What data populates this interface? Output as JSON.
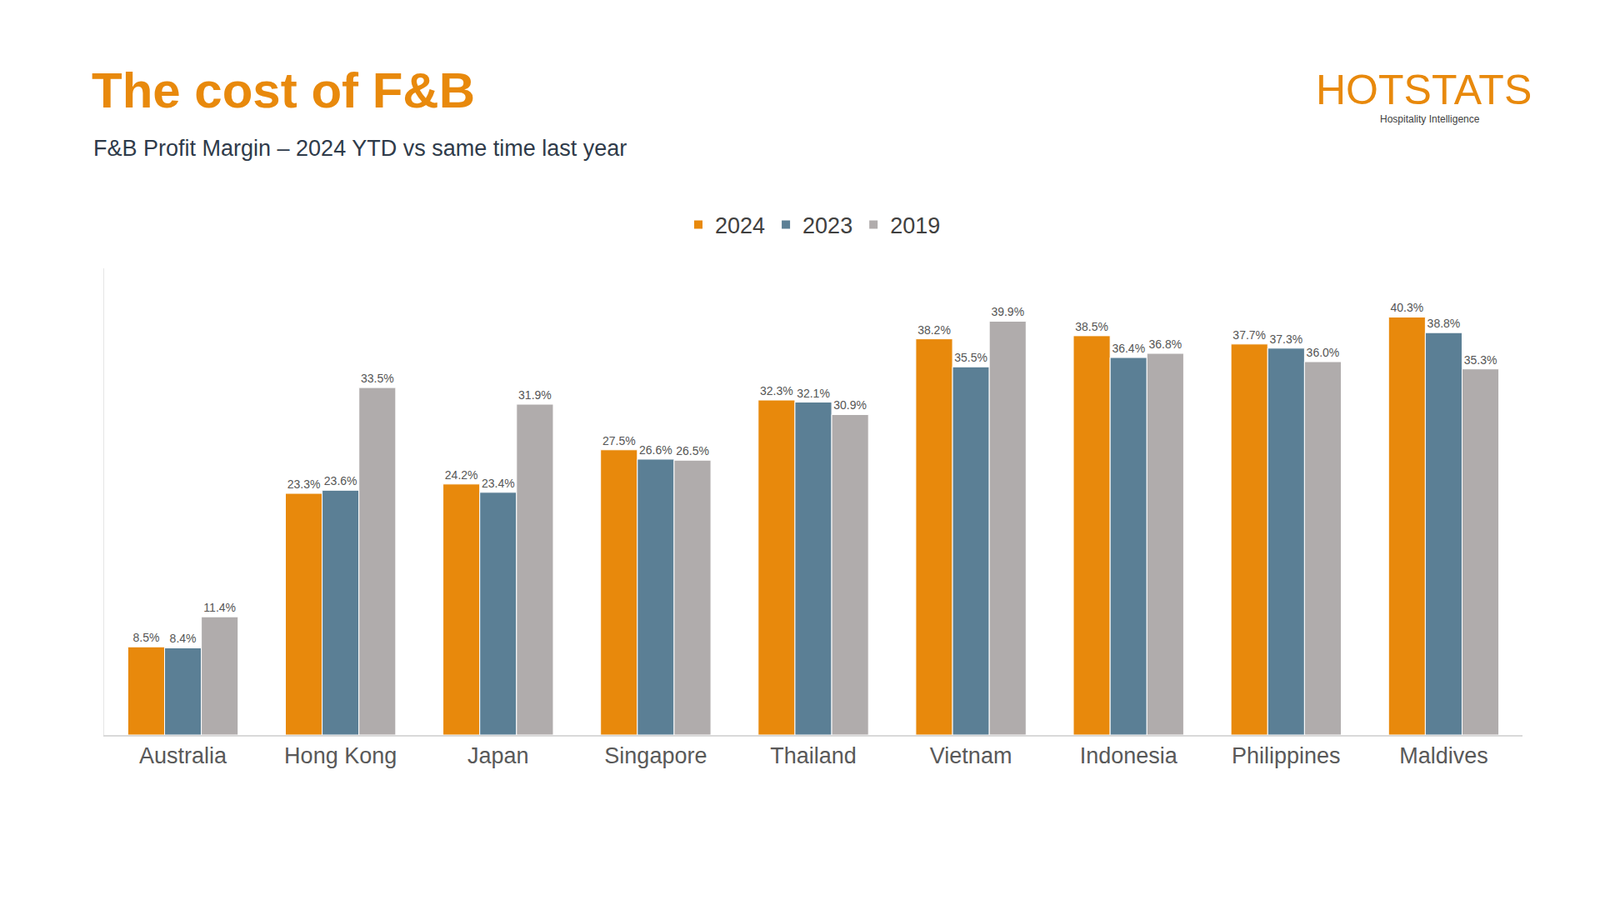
{
  "chart_data": {
    "type": "bar",
    "title": "The cost of F&B",
    "subtitle": "F&B Profit Margin – 2024 YTD vs same time last year",
    "logo": {
      "text": "HOTSTATS",
      "tagline": "Hospitality Intelligence"
    },
    "categories": [
      "Australia",
      "Hong Kong",
      "Japan",
      "Singapore",
      "Thailand",
      "Vietnam",
      "Indonesia",
      "Philippines",
      "Maldives"
    ],
    "series": [
      {
        "name": "2024",
        "color": "#E8890C",
        "values": [
          8.5,
          23.3,
          24.2,
          27.5,
          32.3,
          38.2,
          38.5,
          37.7,
          40.3
        ],
        "value_labels": [
          "8.5%",
          "23.3%",
          "24.2%",
          "27.5%",
          "32.3%",
          "38.2%",
          "38.5%",
          "37.7%",
          "40.3%"
        ]
      },
      {
        "name": "2023",
        "color": "#5B7F95",
        "values": [
          8.4,
          23.6,
          23.4,
          26.6,
          32.1,
          35.5,
          36.4,
          37.3,
          38.8
        ],
        "value_labels": [
          "8.4%",
          "23.6%",
          "23.4%",
          "26.6%",
          "32.1%",
          "35.5%",
          "36.4%",
          "37.3%",
          "38.8%"
        ]
      },
      {
        "name": "2019",
        "color": "#B0ACAC",
        "values": [
          11.4,
          33.5,
          31.9,
          26.5,
          30.9,
          39.9,
          36.8,
          36.0,
          35.3
        ],
        "value_labels": [
          "11.4%",
          "33.5%",
          "31.9%",
          "26.5%",
          "30.9%",
          "39.9%",
          "36.8%",
          "36.0%",
          "35.3%"
        ]
      }
    ],
    "ylim": [
      0,
      45
    ],
    "yticks": [],
    "grid": false,
    "legend": "top",
    "data_labels": true,
    "tick_labels": "x"
  }
}
